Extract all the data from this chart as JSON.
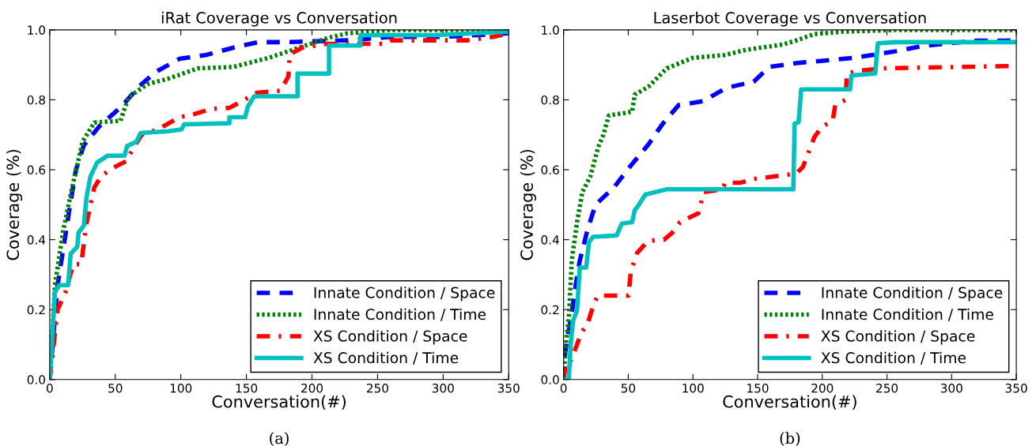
{
  "chart_data": [
    {
      "type": "line",
      "title": "iRat Coverage vs Conversation",
      "xlabel": "Conversation(#)",
      "ylabel": "Coverage (%)",
      "annotations": [
        "(a)"
      ],
      "xlim": [
        0,
        350
      ],
      "xticks": [
        0,
        50,
        100,
        150,
        200,
        250,
        300,
        350
      ],
      "ylim": [
        0,
        1.0
      ],
      "yticks": [
        {
          "value": 0,
          "label": "0.0"
        },
        {
          "value": 0.2,
          "label": "0.2"
        },
        {
          "value": 0.4,
          "label": "0.4"
        },
        {
          "value": 0.6,
          "label": "0.6"
        },
        {
          "value": 0.8,
          "label": "0.8"
        },
        {
          "value": 1.0,
          "label": "1.0"
        }
      ],
      "grid": false,
      "legend": "bottom right",
      "marker": "none",
      "series": [
        {
          "name": "Innate Condition / Space",
          "color": "#0000ff",
          "line_style": "dashed",
          "x": [
            0,
            6,
            16,
            20,
            26,
            38,
            54.5,
            68.6,
            81,
            98.8,
            119,
            141,
            159,
            179,
            227.5,
            260,
            300,
            350
          ],
          "values": [
            0,
            0.27,
            0.51,
            0.6,
            0.67,
            0.725,
            0.78,
            0.84,
            0.88,
            0.917,
            0.928,
            0.95,
            0.965,
            0.965,
            0.97,
            0.98,
            0.98,
            0.99
          ]
        },
        {
          "name": "Innate Condition / Time",
          "color": "#008000",
          "line_style": "dotted",
          "x": [
            0,
            4,
            10,
            16,
            25,
            34,
            54,
            60,
            74.6,
            90,
            113,
            140,
            167,
            187,
            213,
            227,
            260,
            350
          ],
          "values": [
            0,
            0.27,
            0.42,
            0.53,
            0.68,
            0.735,
            0.74,
            0.807,
            0.845,
            0.86,
            0.89,
            0.894,
            0.92,
            0.945,
            0.978,
            0.99,
            1.0,
            1.0
          ]
        },
        {
          "name": "XS Condition / Space",
          "color": "#ff0000",
          "line_style": "dashdot",
          "x": [
            0,
            3,
            6,
            12,
            18,
            24,
            28,
            34,
            40,
            50.6,
            58.6,
            62.7,
            70,
            82.5,
            98.8,
            111,
            123,
            137,
            146,
            158,
            176,
            182,
            183,
            193,
            211,
            256,
            260,
            318,
            338,
            350
          ],
          "values": [
            0,
            0.1,
            0.2,
            0.25,
            0.33,
            0.33,
            0.446,
            0.55,
            0.585,
            0.61,
            0.625,
            0.655,
            0.7,
            0.715,
            0.75,
            0.76,
            0.774,
            0.777,
            0.795,
            0.82,
            0.826,
            0.867,
            0.93,
            0.95,
            0.96,
            0.96,
            0.97,
            0.97,
            0.98,
            0.99
          ]
        },
        {
          "name": "XS Condition / Time",
          "color": "#00bfbf",
          "line_style": "solid",
          "x": [
            0,
            4,
            7.4,
            14,
            16,
            21,
            22,
            26,
            28,
            31,
            36,
            44,
            57,
            59,
            66,
            69.4,
            90.5,
            100.5,
            102.5,
            137,
            137,
            149,
            151,
            156,
            189,
            189,
            213,
            213,
            237,
            237,
            294,
            350
          ],
          "values": [
            0,
            0.25,
            0.27,
            0.27,
            0.36,
            0.38,
            0.42,
            0.44,
            0.52,
            0.58,
            0.62,
            0.64,
            0.64,
            0.668,
            0.68,
            0.705,
            0.71,
            0.715,
            0.73,
            0.733,
            0.75,
            0.75,
            0.78,
            0.81,
            0.81,
            0.875,
            0.875,
            0.955,
            0.955,
            0.985,
            0.985,
            0.995
          ]
        }
      ]
    },
    {
      "type": "line",
      "title": "Laserbot Coverage vs Conversation",
      "xlabel": "Conversation(#)",
      "ylabel": "Coverage (%)",
      "annotations": [
        "(b)"
      ],
      "xlim": [
        0,
        350
      ],
      "xticks": [
        0,
        50,
        100,
        150,
        200,
        250,
        300,
        350
      ],
      "ylim": [
        0,
        1.0
      ],
      "yticks": [
        {
          "value": 0,
          "label": "0.0"
        },
        {
          "value": 0.2,
          "label": "0.2"
        },
        {
          "value": 0.4,
          "label": "0.4"
        },
        {
          "value": 0.6,
          "label": "0.6"
        },
        {
          "value": 0.8,
          "label": "0.8"
        },
        {
          "value": 1.0,
          "label": "1.0"
        }
      ],
      "grid": false,
      "legend": "bottom right",
      "marker": "none",
      "series": [
        {
          "name": "Innate Condition / Space",
          "color": "#0000ff",
          "line_style": "dashed",
          "x": [
            0,
            1.2,
            6.3,
            9.4,
            12.5,
            18.6,
            24.7,
            39,
            52,
            65.5,
            76.7,
            89,
            108,
            125.6,
            147,
            159,
            179.7,
            224.6,
            257,
            277.7,
            318.5,
            341,
            350
          ],
          "values": [
            0,
            0.077,
            0.19,
            0.27,
            0.34,
            0.43,
            0.5,
            0.55,
            0.612,
            0.672,
            0.732,
            0.785,
            0.796,
            0.834,
            0.852,
            0.894,
            0.905,
            0.92,
            0.939,
            0.954,
            0.969,
            0.969,
            0.97
          ]
        },
        {
          "name": "Innate Condition / Time",
          "color": "#008000",
          "line_style": "dotted",
          "x": [
            0,
            1.2,
            4.3,
            6.3,
            10.4,
            14.5,
            20.6,
            26.7,
            30.8,
            34.9,
            53,
            55,
            65.5,
            79.8,
            100,
            124.6,
            141,
            169.5,
            180,
            194,
            216.5,
            260,
            350
          ],
          "values": [
            0,
            0.077,
            0.19,
            0.34,
            0.45,
            0.536,
            0.58,
            0.664,
            0.7,
            0.755,
            0.766,
            0.815,
            0.837,
            0.89,
            0.92,
            0.928,
            0.943,
            0.958,
            0.97,
            0.988,
            0.995,
            1.0,
            1.0
          ]
        },
        {
          "name": "XS Condition / Space",
          "color": "#ff0000",
          "line_style": "dashdot",
          "x": [
            0,
            2,
            5,
            10.4,
            13.5,
            18.6,
            23.7,
            26.7,
            50.2,
            52,
            57,
            65.5,
            77.7,
            84,
            90,
            104.3,
            108.4,
            122.7,
            125,
            137,
            147,
            157,
            179.7,
            185,
            194,
            200,
            208,
            210,
            218,
            219,
            226.7,
            245,
            350
          ],
          "values": [
            0,
            0.05,
            0.05,
            0.1,
            0.133,
            0.16,
            0.22,
            0.24,
            0.24,
            0.31,
            0.363,
            0.397,
            0.4,
            0.42,
            0.45,
            0.476,
            0.536,
            0.544,
            0.563,
            0.563,
            0.574,
            0.578,
            0.589,
            0.608,
            0.694,
            0.724,
            0.739,
            0.785,
            0.8,
            0.875,
            0.882,
            0.89,
            0.897
          ]
        },
        {
          "name": "XS Condition / Time",
          "color": "#00bfbf",
          "line_style": "solid",
          "x": [
            0,
            4,
            5.5,
            7.3,
            10.4,
            12.5,
            17.5,
            19.6,
            22.7,
            41,
            45,
            53,
            55,
            58,
            63.2,
            79.5,
            177.6,
            178.6,
            181.7,
            183.7,
            221.5,
            222.5,
            240.9,
            243,
            257,
            350
          ],
          "values": [
            0,
            0,
            0.1,
            0.168,
            0.198,
            0.32,
            0.32,
            0.393,
            0.408,
            0.412,
            0.446,
            0.45,
            0.484,
            0.499,
            0.529,
            0.544,
            0.544,
            0.732,
            0.736,
            0.83,
            0.83,
            0.87,
            0.875,
            0.962,
            0.965,
            0.965
          ]
        }
      ]
    }
  ]
}
